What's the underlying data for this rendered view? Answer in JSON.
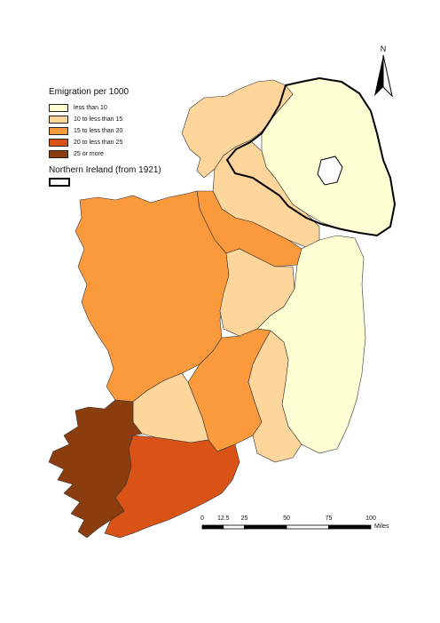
{
  "legend": {
    "title": "Emigration per 1000",
    "classes": [
      {
        "label": "less than 10",
        "color": "#ffffd4"
      },
      {
        "label": "10 to less than 15",
        "color": "#fed59a"
      },
      {
        "label": "15 to less than 20",
        "color": "#fb9a3c"
      },
      {
        "label": "20 to less than 25",
        "color": "#d95316"
      },
      {
        "label": "25 or more",
        "color": "#8b3d0d"
      }
    ],
    "boundary_label": "Northern Ireland (from 1921)"
  },
  "north_arrow": {
    "label": "N"
  },
  "scale_bar": {
    "ticks": [
      "0",
      "12.5",
      "25",
      "50",
      "75",
      "100"
    ],
    "tick_values": [
      0,
      12.5,
      25,
      50,
      75,
      100
    ],
    "units": "Miles"
  }
}
